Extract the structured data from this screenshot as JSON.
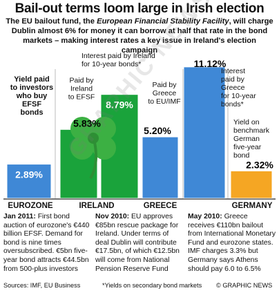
{
  "header": {
    "title": "Bail-out terms loom large in Irish election",
    "subtitle_pre": "The EU bailout fund, the ",
    "subtitle_italic": "European Financial Stability Facility",
    "subtitle_post": ", will charge Dublin almost 6% for money it can borrow at half that rate in the bond markets – making interest rates a key issue in Ireland's election campaign"
  },
  "chart_data": {
    "type": "bar",
    "unit": "%",
    "categories": [
      "EUROZONE",
      "IRELAND",
      "GREECE",
      "GERMANY"
    ],
    "bars": [
      {
        "group": "EUROZONE",
        "value": 2.89,
        "value_label": "2.89%",
        "color": "#3f88d6",
        "label_lines": [
          "Yield paid",
          "to investors",
          "who buy",
          "EFSF",
          "bonds"
        ]
      },
      {
        "group": "IRELAND",
        "value": 5.83,
        "value_label": "5.83%",
        "color": "#1aa33b",
        "label_lines": [
          "Paid by",
          "Ireland",
          "to EFSF"
        ]
      },
      {
        "group": "IRELAND",
        "value": 8.79,
        "value_label": "8.79%",
        "color": "#1aa33b",
        "label_lines": [
          "Interest paid by Ireland",
          "for 10-year bonds*"
        ]
      },
      {
        "group": "GREECE",
        "value": 5.2,
        "value_label": "5.20%",
        "color": "#3f88d6",
        "label_lines": [
          "Paid by",
          "Greece",
          "to EU/IMF"
        ]
      },
      {
        "group": "GREECE",
        "value": 11.12,
        "value_label": "11.12%",
        "color": "#3f88d6",
        "label_lines": [
          "Interest",
          "paid by",
          "Greece",
          "for 10-year",
          "bonds*"
        ]
      },
      {
        "group": "GERMANY",
        "value": 2.32,
        "value_label": "2.32%",
        "color": "#f5a623",
        "label_lines": [
          "Yield on",
          "benchmark",
          "German",
          "five-year",
          "bond"
        ]
      }
    ]
  },
  "notes": [
    {
      "bold_lead": "Jan 2011:",
      "lines": [
        "First bond auction of",
        "eurozone's €440 billion EFSF.",
        "Demand for bond is nine",
        "times oversubscribed.",
        "€5bn five-year bond",
        "attracts €44.5bn from",
        "500-plus investors"
      ]
    },
    {
      "bold_lead": "Nov 2010:",
      "lines": [
        "EU approves €85bn rescue package",
        "for Ireland. Under terms",
        "of deal Dublin will",
        "contribute €17.5bn,",
        "of which €12.5bn will",
        "come from National",
        "Pension Reserve Fund"
      ]
    },
    {
      "bold_lead": "May 2010:",
      "lines": [
        "Greece receives €110bn bailout",
        "from International Monetary",
        "Fund and eurozone states.",
        "IMF charges 3.3% but",
        "Germany says Athens",
        "should pay 6.0 to 6.5%"
      ]
    }
  ],
  "footer": {
    "sources": "Sources: IMF, EU Business",
    "footnote": "*Yields on secondary bond markets",
    "credit": "© GRAPHIC NEWS"
  },
  "watermark": "GRAPHIC NEWS",
  "colors": {
    "blue": "#3f88d6",
    "green": "#1aa33b",
    "orange": "#f5a623",
    "shamrock": "#3cb043"
  }
}
